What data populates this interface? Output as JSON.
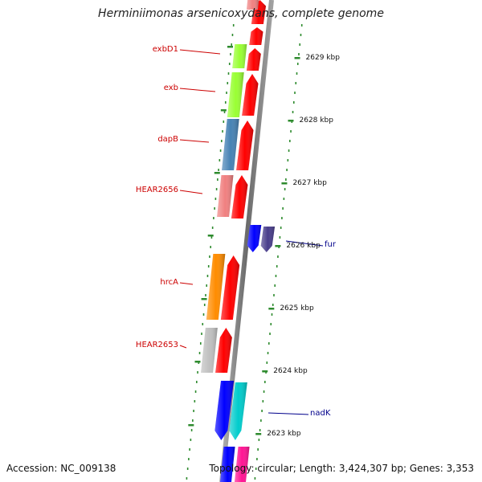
{
  "title": "Herminiimonas arsenicoxydans, complete genome",
  "footer": {
    "accession": "Accession: NC_009138",
    "summary": "Topology: circular; Length: 3,424,307 bp; Genes: 3,353"
  },
  "colors": {
    "backbone": "#7a7a7a",
    "ticks": "#2e8b2e",
    "forward_gene": "#ff0000",
    "reverse_gene": "#0000ff",
    "left_label": "#cc0000",
    "right_label": "#00008b"
  },
  "scale": {
    "unit": "kbp",
    "labels": [
      "2629 kbp",
      "2628 kbp",
      "2627 kbp",
      "2626 kbp",
      "2625 kbp",
      "2624 kbp",
      "2623 kbp"
    ]
  },
  "genes": [
    {
      "name": "exbD1",
      "side": "left",
      "color": "#99ff33"
    },
    {
      "name": "exb",
      "side": "left",
      "color": "#99ff33"
    },
    {
      "name": "dapB",
      "side": "left",
      "color": "#4682b4"
    },
    {
      "name": "HEAR2656",
      "side": "left",
      "color": "#f08080"
    },
    {
      "name": "fur",
      "side": "right",
      "color": "#483d8b"
    },
    {
      "name": "hrcA",
      "side": "left",
      "color": "#ff8c00"
    },
    {
      "name": "HEAR2653",
      "side": "left",
      "color": "#c0c0c0"
    },
    {
      "name": "nadK",
      "side": "right",
      "color": "#00cccc"
    }
  ]
}
